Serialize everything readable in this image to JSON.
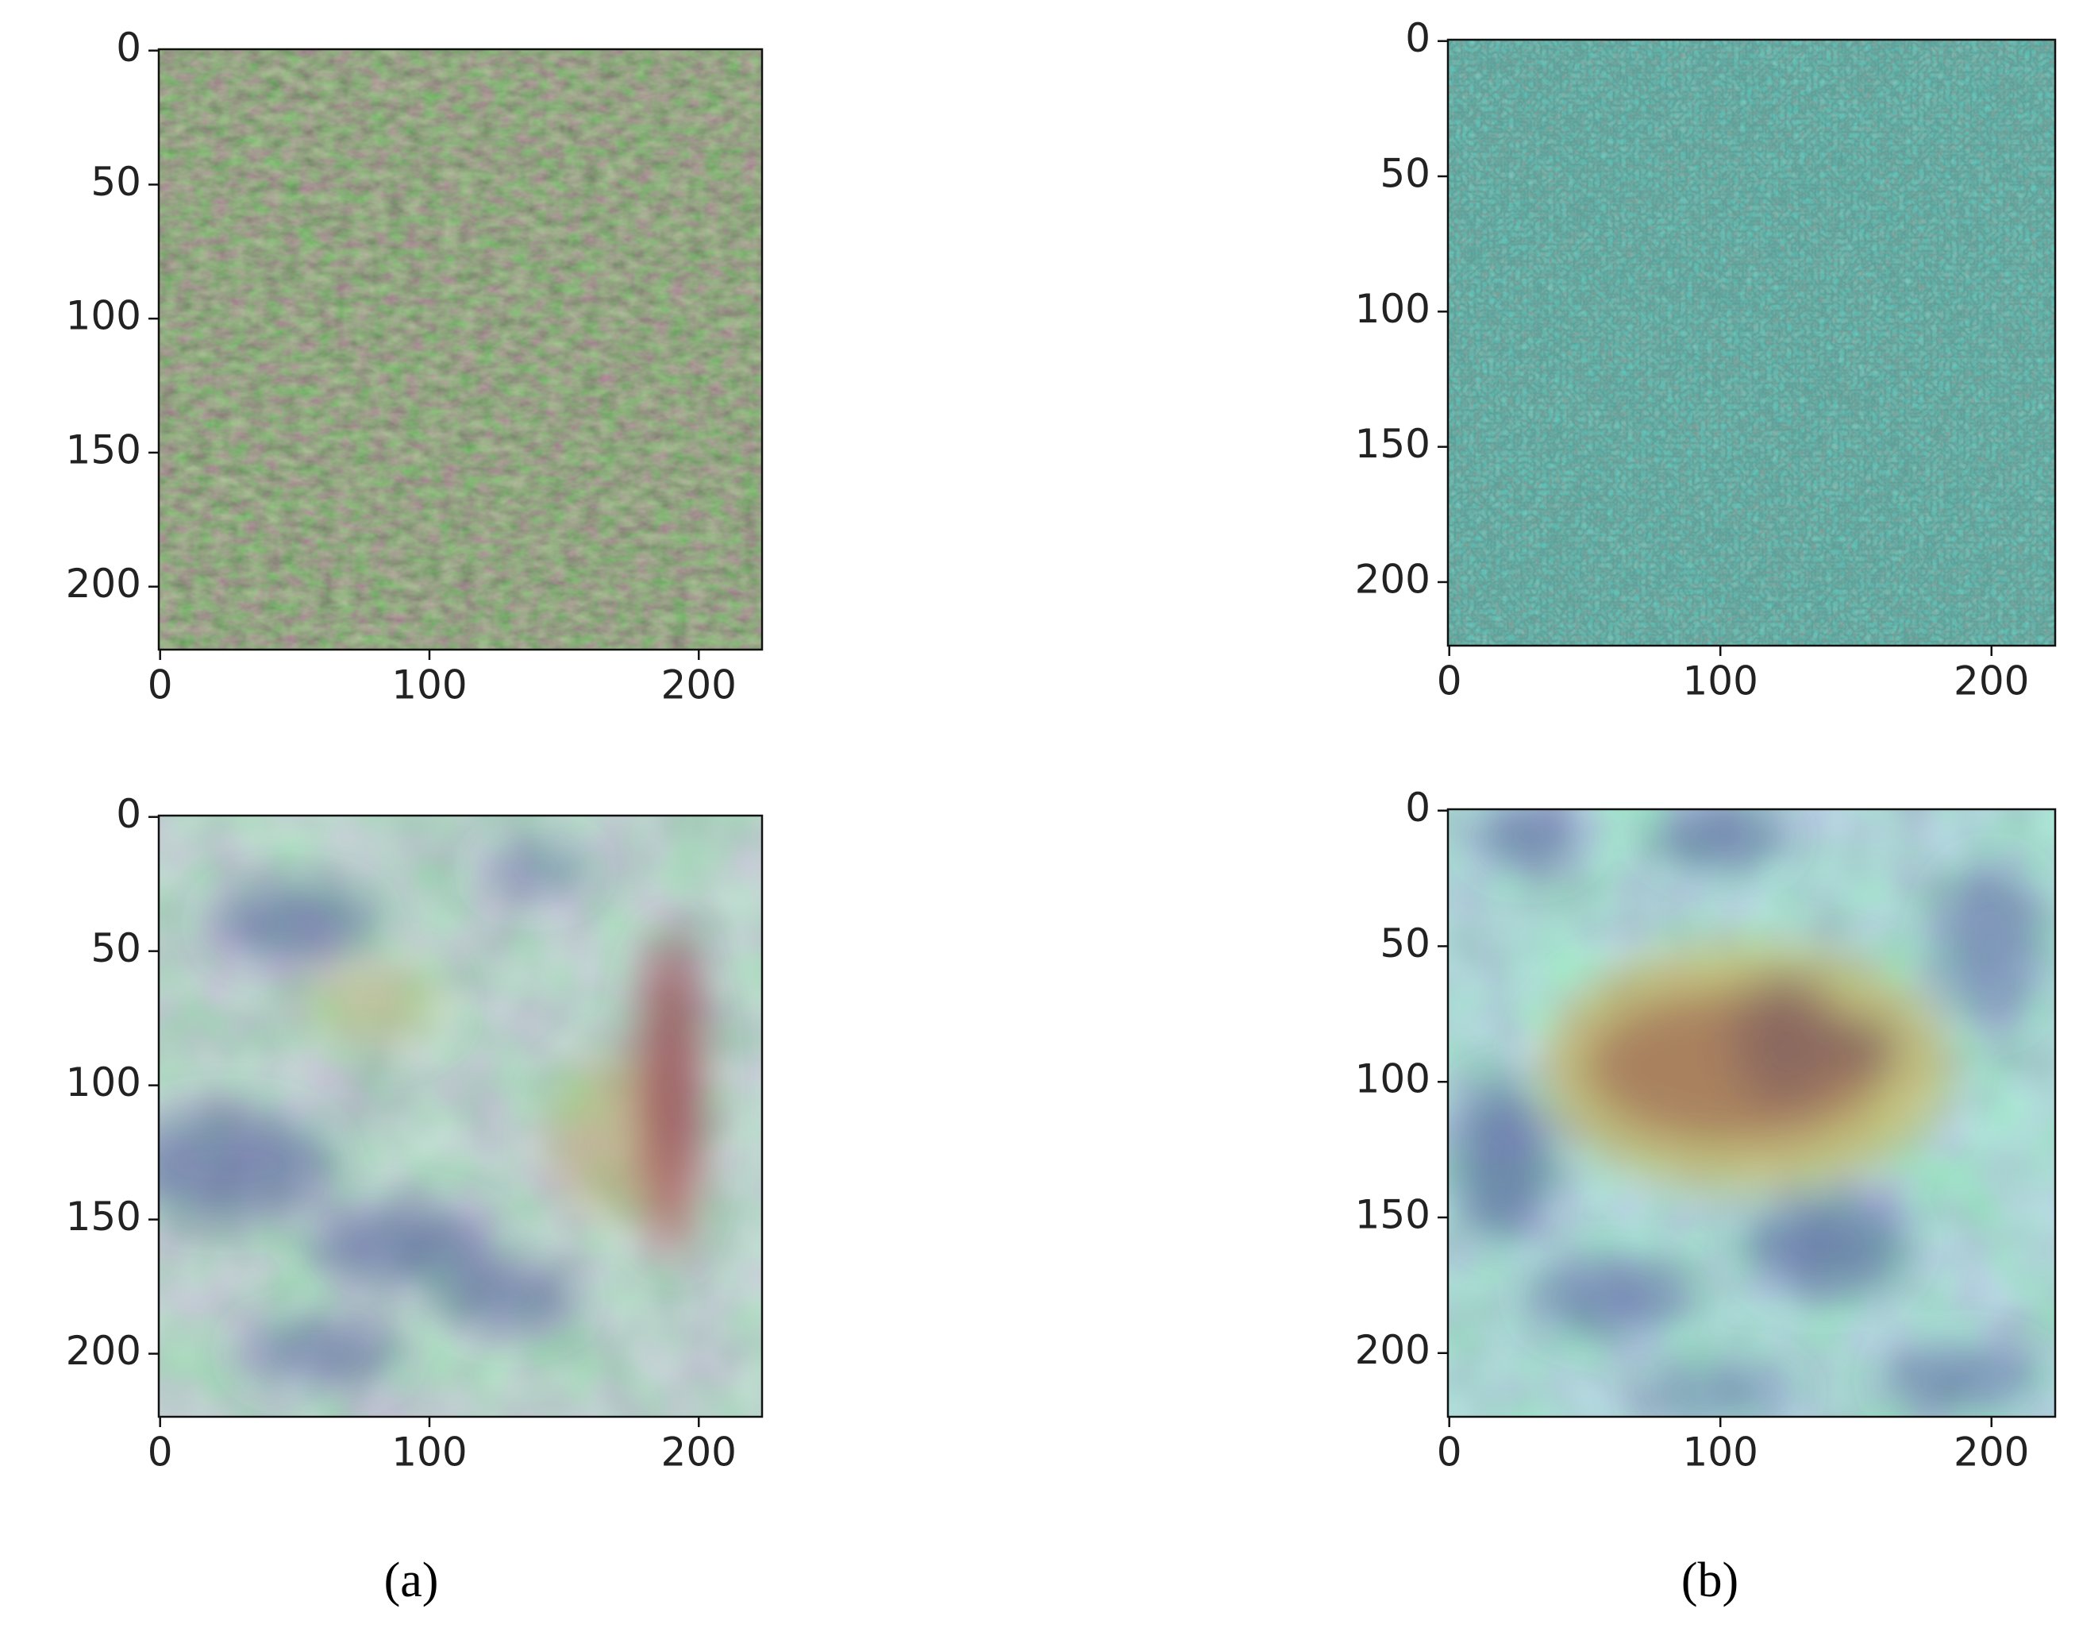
{
  "chart_data": [
    {
      "type": "image",
      "xlim": [
        -0.5,
        223.5
      ],
      "ylim": [
        223.5,
        -0.5
      ],
      "xticks": [
        0,
        100,
        200
      ],
      "yticks": [
        0,
        50,
        100,
        150,
        200
      ]
    },
    {
      "type": "image",
      "xlim": [
        -0.5,
        223.5
      ],
      "ylim": [
        223.5,
        -0.5
      ],
      "xticks": [
        0,
        100,
        200
      ],
      "yticks": [
        0,
        50,
        100,
        150,
        200
      ]
    },
    {
      "type": "image",
      "xlim": [
        -0.5,
        223.5
      ],
      "ylim": [
        223.5,
        -0.5
      ],
      "xticks": [
        0,
        100,
        200
      ],
      "yticks": [
        0,
        50,
        100,
        150,
        200
      ]
    },
    {
      "type": "image",
      "xlim": [
        -0.5,
        223.5
      ],
      "ylim": [
        223.5,
        -0.5
      ],
      "xticks": [
        0,
        100,
        200
      ],
      "yticks": [
        0,
        50,
        100,
        150,
        200
      ]
    }
  ],
  "captions": [
    "(a)",
    "(b)"
  ]
}
